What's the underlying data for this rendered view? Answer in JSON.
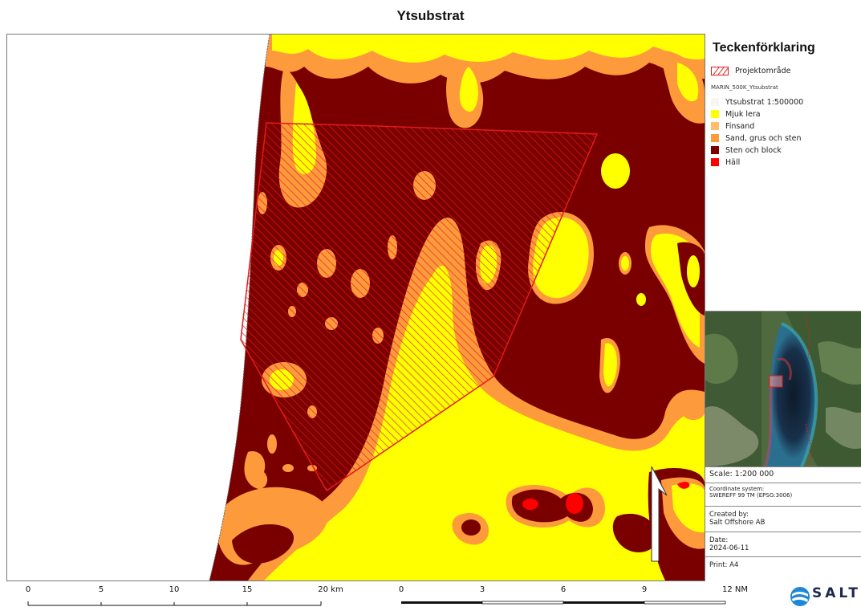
{
  "title": "Ytsubstrat",
  "colors": {
    "mjuk_lera": "#ffff00",
    "finsand": "#fdbf6f",
    "sand_grus_sten": "#fd9a3c",
    "sten_och_block": "#7a0000",
    "hall": "#ff0000",
    "projektomrade": "#e31a1c"
  },
  "legend": {
    "title": "Teckenförklaring",
    "project_area": "Projektområde",
    "layer_name": "MARIN_500K_Ytsubstrat",
    "group_title": "Ytsubstrat 1:500000",
    "items": [
      {
        "label": "Mjuk lera",
        "color": "#ffff00"
      },
      {
        "label": "Finsand",
        "color": "#fdbf6f"
      },
      {
        "label": "Sand, grus och sten",
        "color": "#fd9a3c"
      },
      {
        "label": "Sten och block",
        "color": "#7a0000"
      },
      {
        "label": "Häll",
        "color": "#ff0000"
      }
    ]
  },
  "info": {
    "scale_label": "Scale:",
    "scale_value": "1:200 000",
    "crs_label": "Coordinate system:",
    "crs_value": "SWEREFF 99 TM (EPSG:3006)",
    "created_label": "Created by:",
    "created_value": "Salt Offshore AB",
    "date_label": "Date:",
    "date_value": "2024-06-11",
    "print_label": "Print:",
    "print_value": "A4"
  },
  "scalebar_km": {
    "ticks": [
      "0",
      "5",
      "10",
      "15",
      "20 km"
    ]
  },
  "scalebar_nm": {
    "ticks": [
      "0",
      "3",
      "6",
      "9",
      "12 NM"
    ]
  },
  "north_arrow": "north-arrow-icon",
  "logo": {
    "text": "SALT",
    "icon": "salt-logo-icon"
  }
}
